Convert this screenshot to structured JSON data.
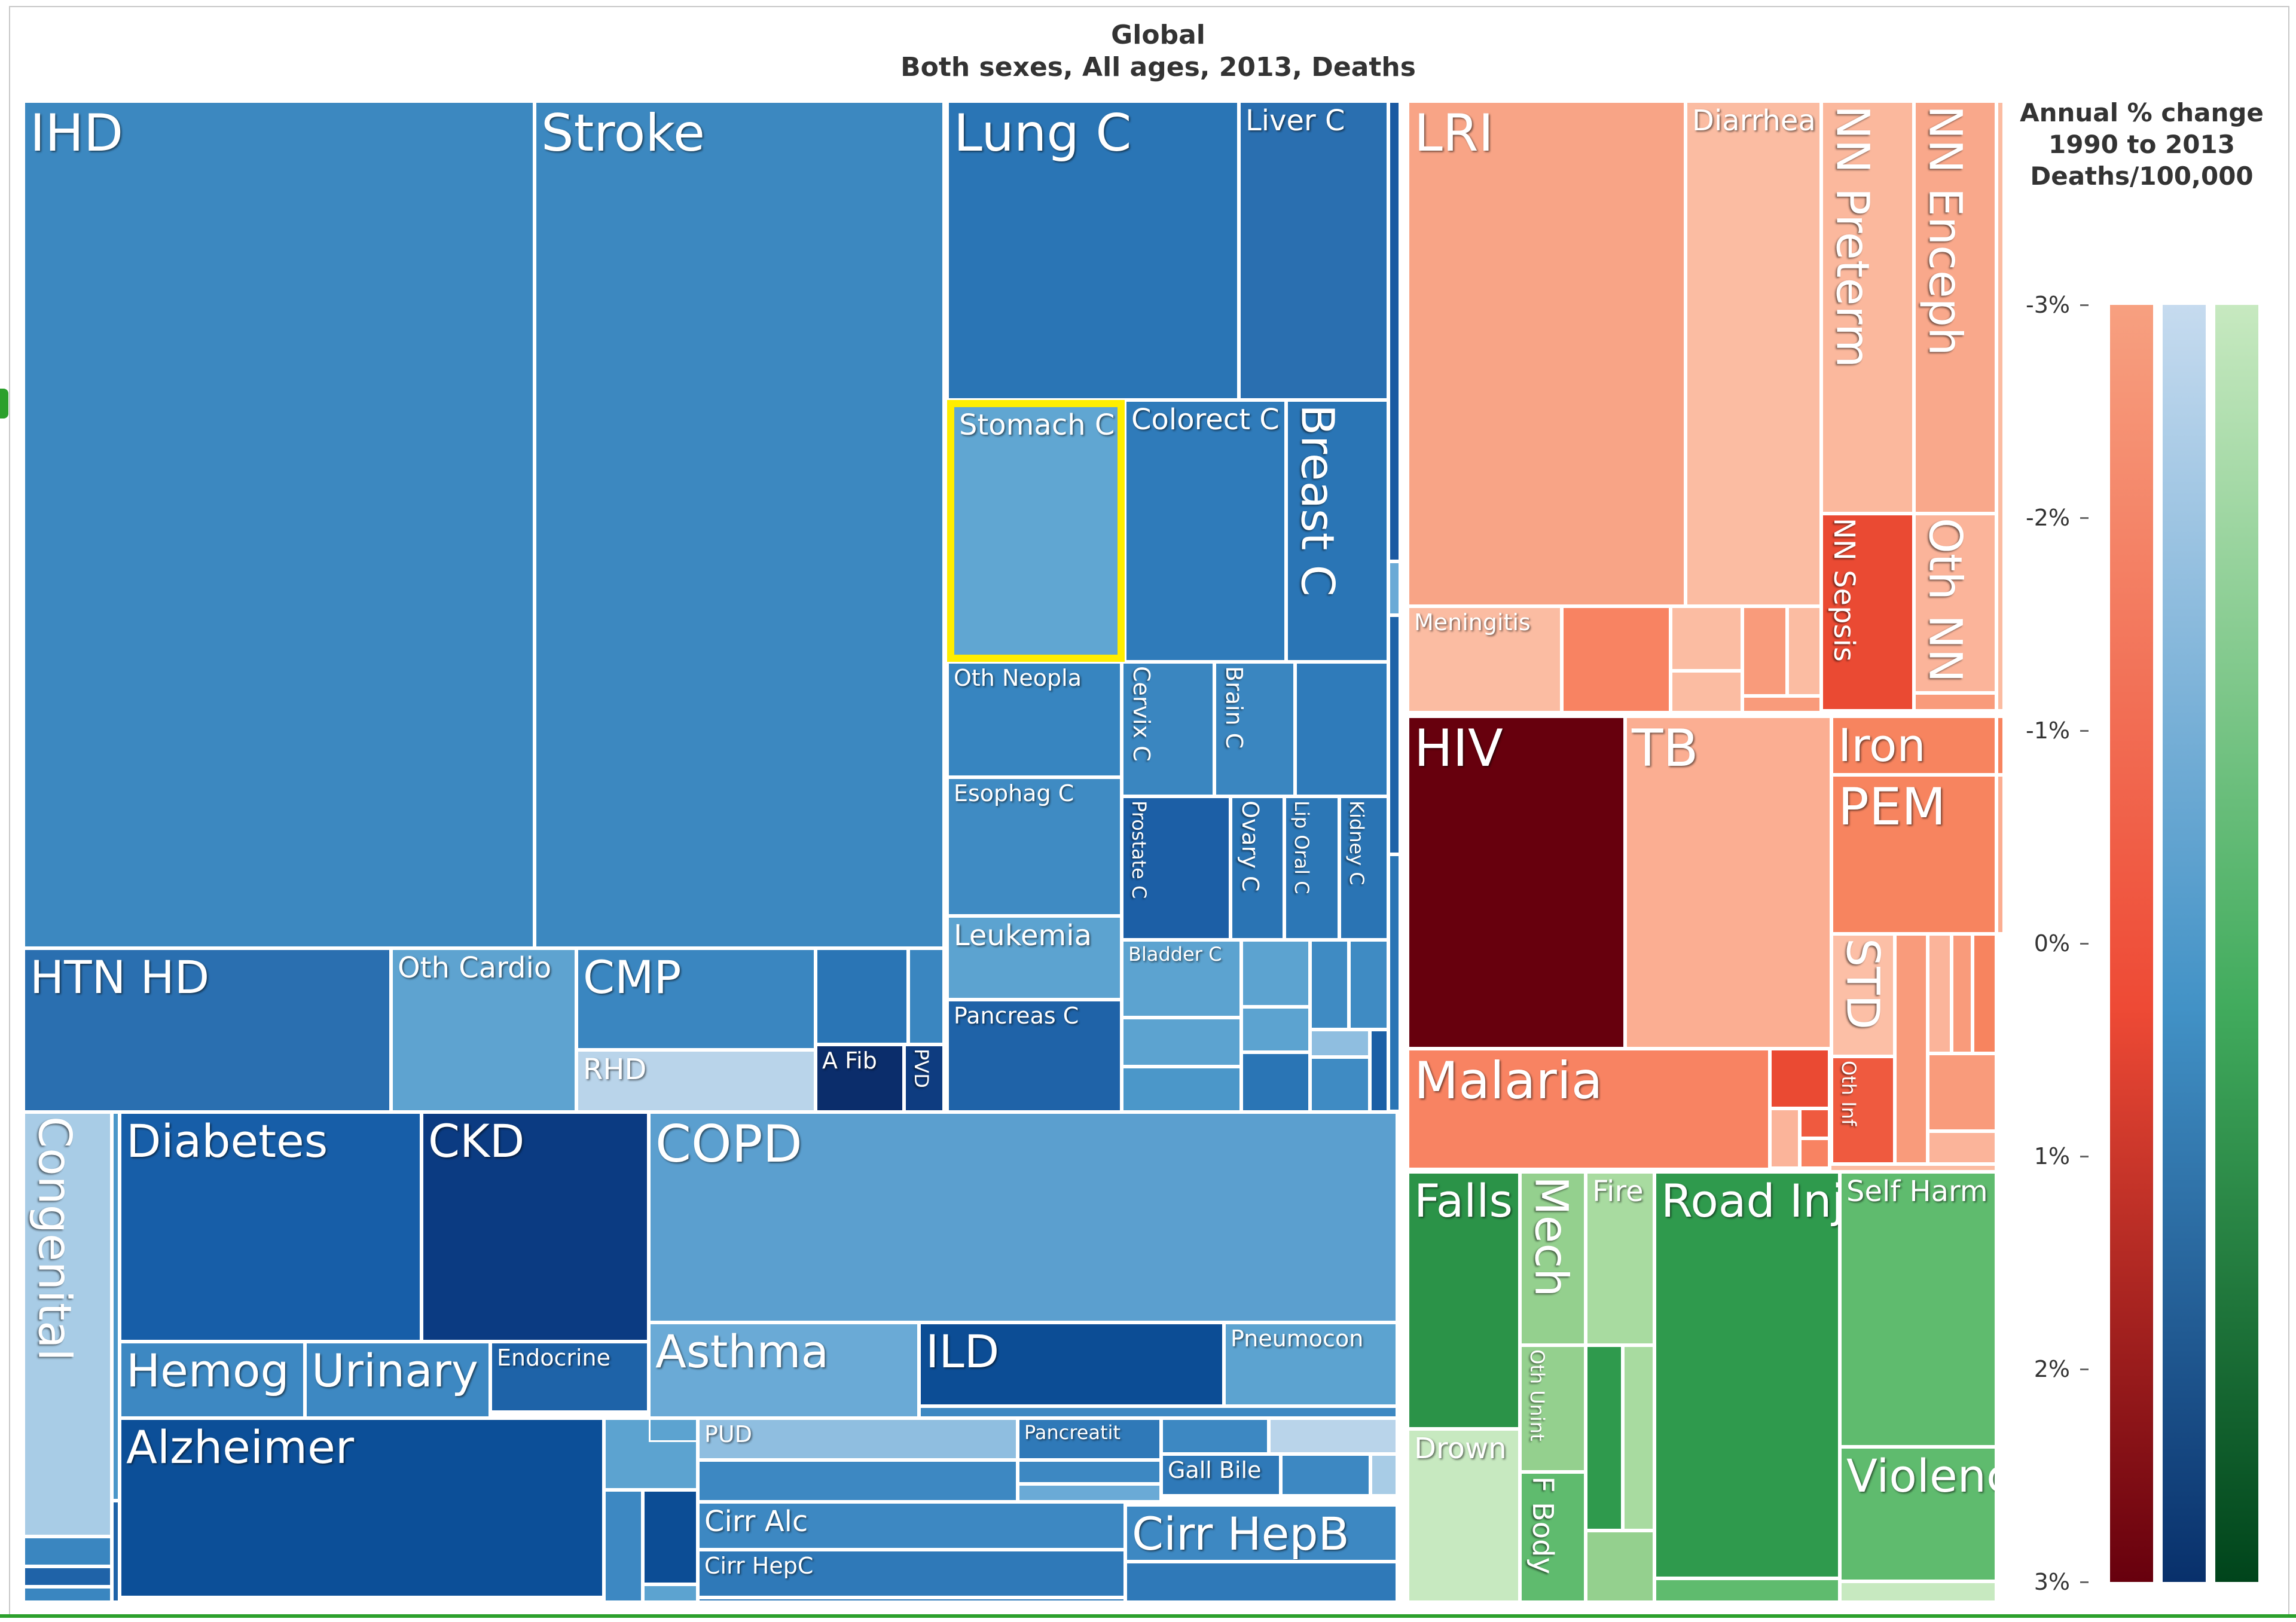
{
  "chart_data": {
    "type": "treemap",
    "title": "Global",
    "subtitle": "Both sexes, All ages, 2013, Deaths",
    "legend": {
      "title_lines": [
        "Annual % change",
        "1990 to 2013",
        "Deaths/100,000"
      ],
      "ticks": [
        "-3%",
        "-2%",
        "-1%",
        "0%",
        "1%",
        "2%",
        "3%"
      ],
      "placement": "right",
      "gradients": [
        {
          "name": "red",
          "from": "#f7a080",
          "mid": "#ee4a35",
          "to": "#67000d"
        },
        {
          "name": "blue",
          "from": "#c6dbef",
          "mid": "#4292c6",
          "to": "#08306b"
        },
        {
          "name": "green",
          "from": "#c7e9c0",
          "mid": "#41ab5d",
          "to": "#00441b"
        }
      ]
    },
    "highlight": "Stomach C",
    "cells": [
      {
        "label": "IHD",
        "group": "ncd",
        "color": "#3c88c0"
      },
      {
        "label": "Stroke",
        "group": "ncd",
        "color": "#3c88c0"
      },
      {
        "label": "Lung C",
        "group": "ncd",
        "color": "#2a75b5"
      },
      {
        "label": "Liver C",
        "group": "ncd",
        "color": "#2a6fb0"
      },
      {
        "label": "Stomach C",
        "group": "ncd",
        "color": "#60a6d2"
      },
      {
        "label": "Colorect C",
        "group": "ncd",
        "color": "#2f7bba"
      },
      {
        "label": "Breast C",
        "group": "ncd",
        "color": "#2a75b5"
      },
      {
        "label": "Oth Neopla",
        "group": "ncd",
        "color": "#3785c0"
      },
      {
        "label": "Cervix C",
        "group": "ncd",
        "color": "#3a86c0"
      },
      {
        "label": "Brain C",
        "group": "ncd",
        "color": "#3a86c0"
      },
      {
        "label": "Esophag C",
        "group": "ncd",
        "color": "#3f8bc3"
      },
      {
        "label": "Prostate C",
        "group": "ncd",
        "color": "#1c5fa6"
      },
      {
        "label": "Ovary C",
        "group": "ncd",
        "color": "#2a74b4"
      },
      {
        "label": "Lip Oral C",
        "group": "ncd",
        "color": "#2c77b6"
      },
      {
        "label": "Kidney C",
        "group": "ncd",
        "color": "#2a74b4"
      },
      {
        "label": "Leukemia",
        "group": "ncd",
        "color": "#5ca3d0"
      },
      {
        "label": "Bladder C",
        "group": "ncd",
        "color": "#5ca3d0"
      },
      {
        "label": "Pancreas C",
        "group": "ncd",
        "color": "#1f63a8"
      },
      {
        "label": "HTN HD",
        "group": "ncd",
        "color": "#2a6fb0"
      },
      {
        "label": "Oth Cardio",
        "group": "ncd",
        "color": "#5ea3d0"
      },
      {
        "label": "CMP",
        "group": "ncd",
        "color": "#3a86c0"
      },
      {
        "label": "RHD",
        "group": "ncd",
        "color": "#b9d4ea"
      },
      {
        "label": "A Fib",
        "group": "ncd",
        "color": "#0b2d6b"
      },
      {
        "label": "PVD",
        "group": "ncd",
        "color": "#0e3c80"
      },
      {
        "label": "Congenital",
        "group": "ncd",
        "color": "#a8cce6"
      },
      {
        "label": "Diabetes",
        "group": "ncd",
        "color": "#175ea8"
      },
      {
        "label": "CKD",
        "group": "ncd",
        "color": "#0b3b82"
      },
      {
        "label": "COPD",
        "group": "ncd",
        "color": "#5b9fcf"
      },
      {
        "label": "Hemog",
        "group": "ncd",
        "color": "#3d88c2"
      },
      {
        "label": "Urinary",
        "group": "ncd",
        "color": "#3d88c2"
      },
      {
        "label": "Endocrine",
        "group": "ncd",
        "color": "#1e63a8"
      },
      {
        "label": "Asthma",
        "group": "ncd",
        "color": "#6aaad6"
      },
      {
        "label": "ILD",
        "group": "ncd",
        "color": "#0c4d95"
      },
      {
        "label": "Pneumocon",
        "group": "ncd",
        "color": "#5ca3d0"
      },
      {
        "label": "Alzheimer",
        "group": "ncd",
        "color": "#0c4f98"
      },
      {
        "label": "PUD",
        "group": "ncd",
        "color": "#8fbee0"
      },
      {
        "label": "Pancreatit",
        "group": "ncd",
        "color": "#2f79b8"
      },
      {
        "label": "Gall Bile",
        "group": "ncd",
        "color": "#2f79b8"
      },
      {
        "label": "Cirr Alc",
        "group": "ncd",
        "color": "#3d88c2"
      },
      {
        "label": "Cirr HepB",
        "group": "ncd",
        "color": "#3d88c2"
      },
      {
        "label": "Cirr HepC",
        "group": "ncd",
        "color": "#2f79b8"
      },
      {
        "label": "LRI",
        "group": "cmnn",
        "color": "#f8a486"
      },
      {
        "label": "Diarrhea",
        "group": "cmnn",
        "color": "#fbbca2"
      },
      {
        "label": "NN Preterm",
        "group": "cmnn",
        "color": "#fbb89d"
      },
      {
        "label": "NN Enceph",
        "group": "cmnn",
        "color": "#f9a88b"
      },
      {
        "label": "NN Sepsis",
        "group": "cmnn",
        "color": "#ea4a33"
      },
      {
        "label": "Oth NN",
        "group": "cmnn",
        "color": "#fbb49a"
      },
      {
        "label": "Meningitis",
        "group": "cmnn",
        "color": "#fbbca2"
      },
      {
        "label": "HIV",
        "group": "cmnn",
        "color": "#67000d"
      },
      {
        "label": "TB",
        "group": "cmnn",
        "color": "#fbae92"
      },
      {
        "label": "Iron",
        "group": "cmnn",
        "color": "#f7845f"
      },
      {
        "label": "PEM",
        "group": "cmnn",
        "color": "#f7845f"
      },
      {
        "label": "STD",
        "group": "cmnn",
        "color": "#fcbfa6"
      },
      {
        "label": "Oth Inf",
        "group": "cmnn",
        "color": "#ef5a3f"
      },
      {
        "label": "Malaria",
        "group": "cmnn",
        "color": "#f88362"
      },
      {
        "label": "Falls",
        "group": "injury",
        "color": "#2b9348"
      },
      {
        "label": "Mech",
        "group": "injury",
        "color": "#94d08e"
      },
      {
        "label": "Fire",
        "group": "injury",
        "color": "#a8dba0"
      },
      {
        "label": "Road Inj",
        "group": "injury",
        "color": "#2f9a4d"
      },
      {
        "label": "Self Harm",
        "group": "injury",
        "color": "#5fbb6e"
      },
      {
        "label": "Violence",
        "group": "injury",
        "color": "#5fbb6e"
      },
      {
        "label": "Drown",
        "group": "injury",
        "color": "#c7e9c0"
      },
      {
        "label": "Oth Unint",
        "group": "injury",
        "color": "#94d08e"
      },
      {
        "label": "F Body",
        "group": "injury",
        "color": "#5fbb6e"
      }
    ]
  }
}
